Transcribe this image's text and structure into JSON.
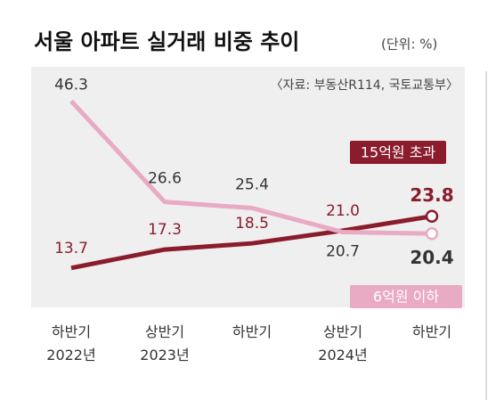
{
  "chart_data": {
    "type": "line",
    "title": "서울 아파트 실거래 비중 추이",
    "unit": "(단위: %)",
    "source": "〈자료: 부동산R114, 국토교통부〉",
    "categories": [
      "하반기\n2022년",
      "상반기\n2023년",
      "하반기",
      "상반기\n2024년",
      "하반기"
    ],
    "series": [
      {
        "name": "15억원 초과",
        "color": "#8a1c2c",
        "values": [
          13.7,
          17.3,
          18.5,
          21.0,
          23.8
        ],
        "value_labels": [
          "13.7",
          "17.3",
          "18.5",
          "21.0",
          "23.8"
        ]
      },
      {
        "name": "6억원 이하",
        "color": "#e9aac4",
        "values": [
          46.3,
          26.6,
          25.4,
          20.7,
          20.4
        ],
        "value_labels": [
          "46.3",
          "26.6",
          "25.4",
          "20.7",
          "20.4"
        ]
      }
    ],
    "ylim": [
      6,
      53
    ]
  }
}
